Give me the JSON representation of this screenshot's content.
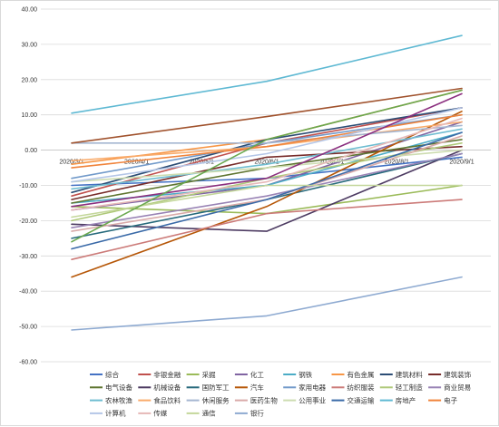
{
  "chart_data": {
    "type": "line",
    "x": [
      "2020/3/1",
      "2020/4/1",
      "2020/5/1",
      "2020/6/1",
      "2020/7/1",
      "2020/8/1",
      "2020/9/1"
    ],
    "x_index": [
      0,
      1,
      2,
      3,
      4,
      5,
      6
    ],
    "ylim": [
      -60,
      40
    ],
    "y_ticks": [
      "40.00",
      "30.00",
      "20.00",
      "10.00",
      "0.00",
      "-10.00",
      "-20.00",
      "-30.00",
      "-40.00",
      "-50.00",
      "-60.00"
    ],
    "y_tick_values": [
      40,
      30,
      20,
      10,
      0,
      -10,
      -20,
      -30,
      -40,
      -50,
      -60
    ],
    "grid": "horizontal",
    "legend_position": "bottom",
    "series": [
      {
        "name": "综合",
        "color": "#4472c4",
        "points": [
          [
            0,
            -10
          ],
          [
            3,
            -8
          ],
          [
            6,
            -2
          ]
        ]
      },
      {
        "name": "非银金融",
        "color": "#c0504d",
        "points": [
          [
            0,
            -13
          ],
          [
            3,
            2
          ],
          [
            6,
            12
          ]
        ]
      },
      {
        "name": "采掘",
        "color": "#9bbb59",
        "points": [
          [
            0,
            -16
          ],
          [
            3,
            -18
          ],
          [
            6,
            -10
          ]
        ]
      },
      {
        "name": "化工",
        "color": "#8064a2",
        "points": [
          [
            0,
            -17
          ],
          [
            3,
            -10
          ],
          [
            6,
            8
          ]
        ]
      },
      {
        "name": "钢铁",
        "color": "#4bacc6",
        "points": [
          [
            0,
            -15
          ],
          [
            3,
            -10
          ],
          [
            6,
            5
          ]
        ]
      },
      {
        "name": "有色金属",
        "color": "#f79646",
        "points": [
          [
            0,
            -4
          ],
          [
            3,
            3
          ],
          [
            6,
            17
          ]
        ]
      },
      {
        "name": "建筑材料",
        "color": "#2c4d75",
        "points": [
          [
            0,
            -12
          ],
          [
            3,
            3
          ],
          [
            6,
            12
          ]
        ]
      },
      {
        "name": "建筑装饰",
        "color": "#772c2a",
        "points": [
          [
            0,
            -14
          ],
          [
            3,
            -2
          ],
          [
            6,
            1
          ]
        ]
      },
      {
        "name": "电气设备",
        "color": "#5f7530",
        "points": [
          [
            0,
            -15
          ],
          [
            3,
            -5
          ],
          [
            6,
            3
          ]
        ]
      },
      {
        "name": "机械设备",
        "color": "#4d3b62",
        "points": [
          [
            0,
            -21
          ],
          [
            3,
            -23
          ],
          [
            6,
            0
          ]
        ]
      },
      {
        "name": "国防军工",
        "color": "#276a7c",
        "points": [
          [
            0,
            -25
          ],
          [
            3,
            -14
          ],
          [
            6,
            -1
          ]
        ]
      },
      {
        "name": "汽车",
        "color": "#b65708",
        "points": [
          [
            0,
            -36
          ],
          [
            3,
            -16
          ],
          [
            6,
            11
          ]
        ]
      },
      {
        "name": "家用电器",
        "color": "#729aca",
        "points": [
          [
            0,
            -8
          ],
          [
            3,
            2
          ],
          [
            6,
            10
          ]
        ]
      },
      {
        "name": "纺织服装",
        "color": "#cc7b79",
        "points": [
          [
            0,
            -31
          ],
          [
            3,
            -18
          ],
          [
            6,
            -14
          ]
        ]
      },
      {
        "name": "轻工制造",
        "color": "#afc97a",
        "points": [
          [
            0,
            -20
          ],
          [
            3,
            -8
          ],
          [
            6,
            2
          ]
        ]
      },
      {
        "name": "商业贸易",
        "color": "#9983b5",
        "points": [
          [
            0,
            -22
          ],
          [
            3,
            -13
          ],
          [
            6,
            -1
          ]
        ]
      },
      {
        "name": "农林牧渔",
        "color": "#6fbdd1",
        "points": [
          [
            0,
            -11
          ],
          [
            3,
            -4
          ],
          [
            6,
            6
          ]
        ]
      },
      {
        "name": "食品饮料",
        "color": "#f9ab6b",
        "points": [
          [
            0,
            -3
          ],
          [
            3,
            1
          ],
          [
            6,
            8
          ]
        ]
      },
      {
        "name": "休闲服务",
        "color": "#a5b6d1",
        "points": [
          [
            0,
            2
          ],
          [
            3,
            2
          ],
          [
            6,
            7
          ]
        ]
      },
      {
        "name": "医药生物",
        "color": "#d9aaa9",
        "points": [
          [
            0,
            -23
          ],
          [
            3,
            -14
          ],
          [
            6,
            4
          ]
        ]
      },
      {
        "name": "公用事业",
        "color": "#cddcb0",
        "points": [
          [
            0,
            -9
          ],
          [
            3,
            -5
          ],
          [
            6,
            0
          ]
        ]
      },
      {
        "name": "交通运输",
        "color": "#3a6aa8",
        "points": [
          [
            0,
            -28
          ],
          [
            3,
            -14
          ],
          [
            6,
            5
          ]
        ]
      },
      {
        "name": "房地产",
        "color": "#5fb9d3",
        "points": [
          [
            0,
            10.5
          ],
          [
            3,
            19.5
          ],
          [
            6,
            32.5
          ]
        ]
      },
      {
        "name": "电子",
        "color": "#f0833a",
        "points": [
          [
            0,
            -5
          ],
          [
            3,
            1
          ],
          [
            6,
            10
          ]
        ]
      },
      {
        "name": "计算机",
        "color": "#b4c6e7",
        "points": [
          [
            0,
            -9
          ],
          [
            3,
            -1
          ],
          [
            6,
            12
          ]
        ]
      },
      {
        "name": "传媒",
        "color": "#e6b8b7",
        "points": [
          [
            0,
            -17
          ],
          [
            3,
            -9
          ],
          [
            6,
            9
          ]
        ]
      },
      {
        "name": "通信",
        "color": "#c4d79b",
        "points": [
          [
            0,
            -19
          ],
          [
            3,
            -10
          ],
          [
            6,
            -10
          ]
        ]
      },
      {
        "name": "银行",
        "color": "#8eaad1",
        "points": [
          [
            0,
            -51
          ],
          [
            3,
            -47
          ],
          [
            6,
            -36
          ]
        ]
      },
      {
        "name": "",
        "color": "#a0522d",
        "points": [
          [
            0,
            2
          ],
          [
            3,
            9.5
          ],
          [
            6,
            17.5
          ]
        ]
      },
      {
        "name": "",
        "color": "#8b2f7f",
        "points": [
          [
            0,
            -16
          ],
          [
            3,
            -8
          ],
          [
            6,
            16
          ]
        ]
      },
      {
        "name": "",
        "color": "#6aa84f",
        "points": [
          [
            0,
            -26
          ],
          [
            3,
            3
          ],
          [
            6,
            17
          ]
        ]
      }
    ]
  }
}
